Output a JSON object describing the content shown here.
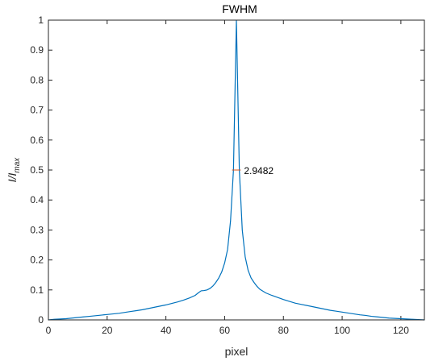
{
  "chart_data": {
    "type": "line",
    "title": "FWHM",
    "xlabel": "pixel",
    "ylabel_main": "I/I",
    "ylabel_sub": "max",
    "xlim": [
      0,
      128
    ],
    "ylim": [
      0,
      1
    ],
    "xticks": [
      0,
      20,
      40,
      60,
      80,
      100,
      120
    ],
    "yticks": [
      0,
      0.1,
      0.2,
      0.3,
      0.4,
      0.5,
      0.6,
      0.7,
      0.8,
      0.9,
      1
    ],
    "ytick_labels": [
      "0",
      "0.1",
      "0.2",
      "0.3",
      "0.4",
      "0.5",
      "0.6",
      "0.7",
      "0.8",
      "0.9",
      "1"
    ],
    "grid": false,
    "series": [
      {
        "color": "#0072BD",
        "x": [
          0,
          2,
          4,
          6,
          8,
          10,
          12,
          14,
          16,
          18,
          20,
          22,
          24,
          26,
          28,
          30,
          32,
          34,
          36,
          38,
          40,
          42,
          44,
          46,
          48,
          50,
          51,
          52,
          53,
          54,
          55,
          56,
          57,
          58,
          59,
          60,
          61,
          62,
          63,
          64,
          65,
          66,
          67,
          68,
          69,
          70,
          71,
          72,
          74,
          76,
          78,
          80,
          82,
          84,
          86,
          88,
          90,
          92,
          94,
          96,
          98,
          100,
          102,
          104,
          106,
          108,
          110,
          112,
          114,
          116,
          118,
          120,
          122,
          124,
          126,
          128
        ],
        "y": [
          0,
          0.002,
          0.003,
          0.004,
          0.006,
          0.008,
          0.01,
          0.012,
          0.014,
          0.016,
          0.018,
          0.02,
          0.022,
          0.025,
          0.028,
          0.031,
          0.034,
          0.038,
          0.042,
          0.046,
          0.05,
          0.055,
          0.06,
          0.066,
          0.073,
          0.082,
          0.09,
          0.097,
          0.098,
          0.1,
          0.105,
          0.113,
          0.125,
          0.14,
          0.16,
          0.19,
          0.235,
          0.33,
          0.5,
          1.0,
          0.5,
          0.3,
          0.21,
          0.165,
          0.14,
          0.125,
          0.112,
          0.102,
          0.09,
          0.082,
          0.075,
          0.068,
          0.062,
          0.056,
          0.052,
          0.048,
          0.044,
          0.04,
          0.036,
          0.032,
          0.029,
          0.026,
          0.023,
          0.02,
          0.017,
          0.015,
          0.012,
          0.01,
          0.008,
          0.006,
          0.005,
          0.004,
          0.003,
          0.002,
          0.001,
          0
        ]
      }
    ],
    "annotation": {
      "text": "2.9482",
      "fwhm_x": [
        62.53,
        65.47
      ],
      "fwhm_y": 0.5,
      "color": "#D95319"
    }
  }
}
